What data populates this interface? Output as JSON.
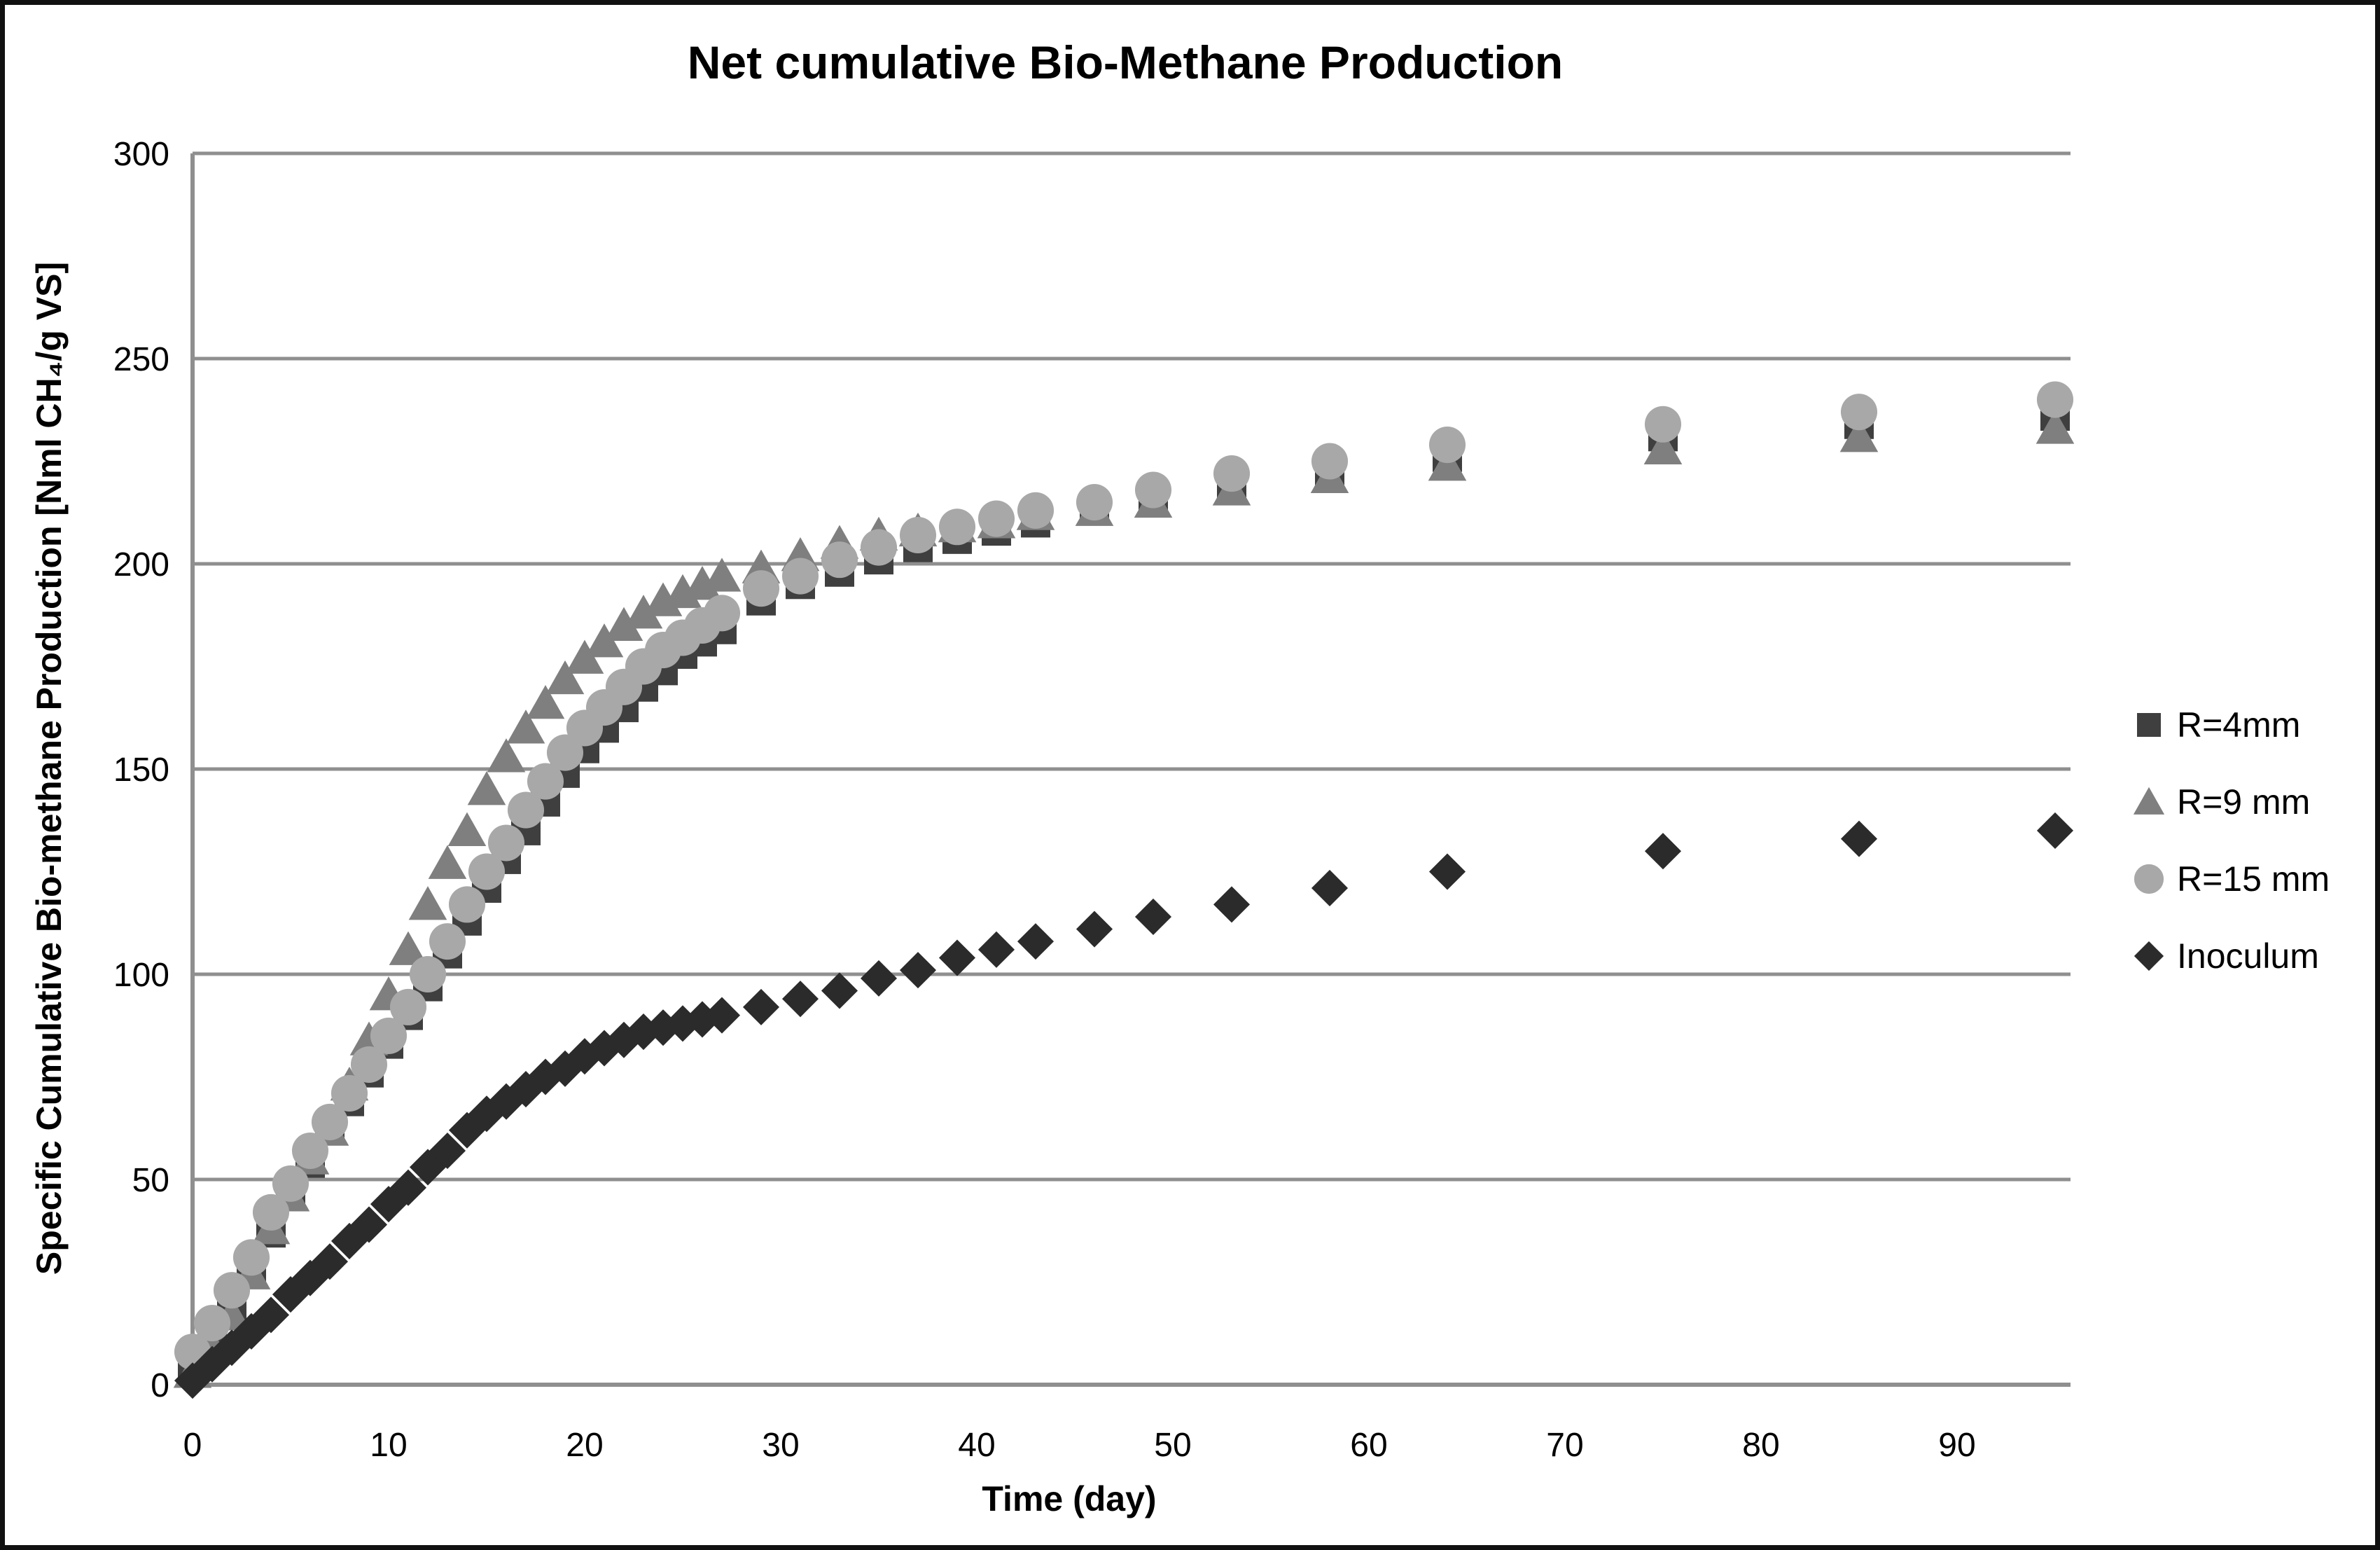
{
  "figure": {
    "background": "#ffffff",
    "border_color": "#111111"
  },
  "chart_data": {
    "type": "scatter",
    "title": "Net cumulative Bio-Methane Production",
    "xlabel": "Time (day)",
    "ylabel": "Specific Cumulative Bio-methane  Production [Nml CH₄/g VS]",
    "xlim": [
      0,
      95.8
    ],
    "ylim": [
      0,
      300
    ],
    "xticks": [
      0,
      10,
      20,
      30,
      40,
      50,
      60,
      70,
      80,
      90
    ],
    "yticks": [
      0,
      50,
      100,
      150,
      200,
      250,
      300
    ],
    "grid": "horizontal-only",
    "gridline_color": "#8f8f8f",
    "axis_color": "#8f8f8f",
    "legend_position": "right",
    "x_days": [
      0,
      1,
      2,
      3,
      4,
      5,
      6,
      7,
      8,
      9,
      10,
      11,
      12,
      13,
      14,
      15,
      16,
      17,
      18,
      19,
      20,
      21,
      22,
      23,
      24,
      25,
      26,
      27,
      29,
      31,
      33,
      35,
      37,
      39,
      41,
      43,
      46,
      49,
      53,
      58,
      64,
      75,
      85,
      95
    ],
    "series": [
      {
        "name": "R=4mm",
        "marker": "square",
        "color": "#3f3f3f",
        "values": [
          5,
          11,
          18,
          27,
          37,
          46,
          54,
          62,
          69,
          76,
          83,
          90,
          97,
          105,
          113,
          121,
          128,
          135,
          142,
          149,
          155,
          160,
          165,
          170,
          174,
          178,
          181,
          184,
          191,
          195,
          198,
          201,
          204,
          206,
          208,
          210,
          213,
          216,
          219,
          222,
          226,
          231,
          234,
          236
        ]
      },
      {
        "name": "R=9 mm",
        "marker": "triangle",
        "color": "#7f7f7f",
        "values": [
          3,
          9,
          17,
          27,
          38,
          46,
          55,
          62,
          73,
          84,
          95,
          106,
          117,
          127,
          135,
          145,
          153,
          160,
          166,
          172,
          177,
          181,
          185,
          188,
          191,
          193,
          195,
          197,
          199,
          202,
          205,
          207,
          208,
          209,
          210,
          212,
          213,
          215,
          218,
          221,
          224,
          228,
          231,
          233
        ]
      },
      {
        "name": "R=15 mm",
        "marker": "circle",
        "color": "#a8a8a8",
        "values": [
          8,
          15,
          23,
          31,
          42,
          49,
          57,
          64,
          71,
          78,
          85,
          92,
          100,
          108,
          117,
          125,
          132,
          140,
          147,
          154,
          160,
          165,
          170,
          175,
          179,
          182,
          185,
          188,
          194,
          197,
          201,
          204,
          207,
          209,
          211,
          213,
          215,
          218,
          222,
          225,
          229,
          234,
          237,
          240
        ]
      },
      {
        "name": "Inoculum",
        "marker": "diamond",
        "color": "#2b2b2b",
        "values": [
          1,
          5,
          9,
          13,
          17,
          22,
          26,
          30,
          35,
          39,
          44,
          48,
          53,
          57,
          62,
          66,
          69,
          72,
          75,
          77,
          80,
          82,
          84,
          86,
          87,
          88,
          89,
          90,
          92,
          94,
          96,
          99,
          101,
          104,
          106,
          108,
          111,
          114,
          117,
          121,
          125,
          130,
          133,
          135
        ]
      }
    ]
  }
}
